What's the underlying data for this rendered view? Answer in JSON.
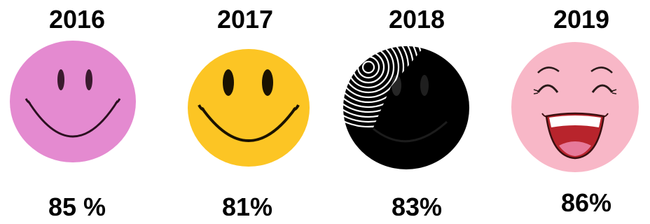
{
  "panels": [
    {
      "year": "2016",
      "percent": "85 %",
      "face_color": "#e48ad0",
      "style": "simple smiley"
    },
    {
      "year": "2017",
      "percent": "81%",
      "face_color": "#fcc524",
      "style": "simple smiley"
    },
    {
      "year": "2018",
      "percent": "83%",
      "face_color": "#000000",
      "style": "dark smiley with white swirl"
    },
    {
      "year": "2019",
      "percent": "86%",
      "face_color": "#f8b7c7",
      "style": "laughing smiley"
    }
  ]
}
